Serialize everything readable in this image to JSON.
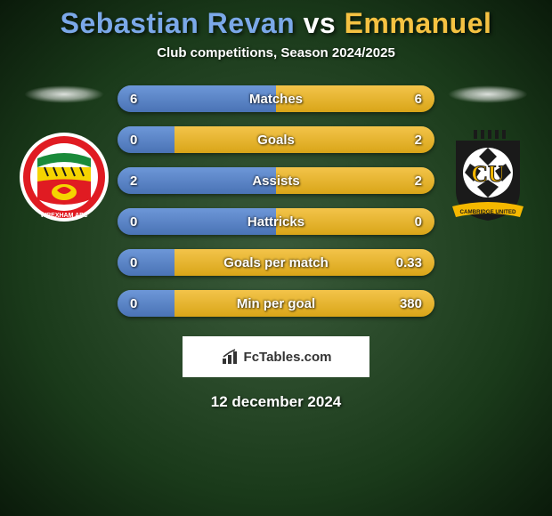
{
  "title": {
    "prefix": "Sebastian Revan",
    "vs": " vs ",
    "suffix": "Emmanuel",
    "prefix_color": "#7ba8e8",
    "suffix_color": "#f5c242",
    "vs_color": "#ffffff",
    "fontsize": 32
  },
  "subtitle": "Club competitions, Season 2024/2025",
  "bars": [
    {
      "label": "Matches",
      "left": "6",
      "right": "6",
      "left_pct": 50,
      "right_pct": 50
    },
    {
      "label": "Goals",
      "left": "0",
      "right": "2",
      "left_pct": 18,
      "right_pct": 82
    },
    {
      "label": "Assists",
      "left": "2",
      "right": "2",
      "left_pct": 50,
      "right_pct": 50
    },
    {
      "label": "Hattricks",
      "left": "0",
      "right": "0",
      "left_pct": 50,
      "right_pct": 50
    },
    {
      "label": "Goals per match",
      "left": "0",
      "right": "0.33",
      "left_pct": 18,
      "right_pct": 82
    },
    {
      "label": "Min per goal",
      "left": "0",
      "right": "380",
      "left_pct": 18,
      "right_pct": 82
    }
  ],
  "bar_style": {
    "height": 30,
    "radius": 15,
    "left_gradient": [
      "#6d97d8",
      "#4a73b5"
    ],
    "right_gradient": [
      "#f3c44a",
      "#d9a518"
    ],
    "label_fontsize": 15,
    "value_fontsize": 15,
    "text_color": "#ffffff"
  },
  "source": "FcTables.com",
  "date": "12 december 2024",
  "crests": {
    "left": {
      "name": "wrexham-crest",
      "shape": "circle",
      "outer_color": "#ffffff",
      "ring_color": "#e01b22",
      "inner_top": "#1a8a3a",
      "inner_mid": "#f5d400",
      "inner_bot": "#e01b22",
      "text_color": "#ffffff"
    },
    "right": {
      "name": "cambridge-united-crest",
      "shape": "shield",
      "outer_color": "#1a1a1a",
      "accent_color": "#f5b800",
      "ball_color": "#ffffff",
      "letters": "CU",
      "letters_color": "#f5b800",
      "ribbon_color": "#f5b800"
    }
  },
  "background": {
    "type": "radial",
    "colors": [
      "#3a5a3a",
      "#2a4a2a",
      "#1a3a1a",
      "#0a1a0a"
    ]
  }
}
